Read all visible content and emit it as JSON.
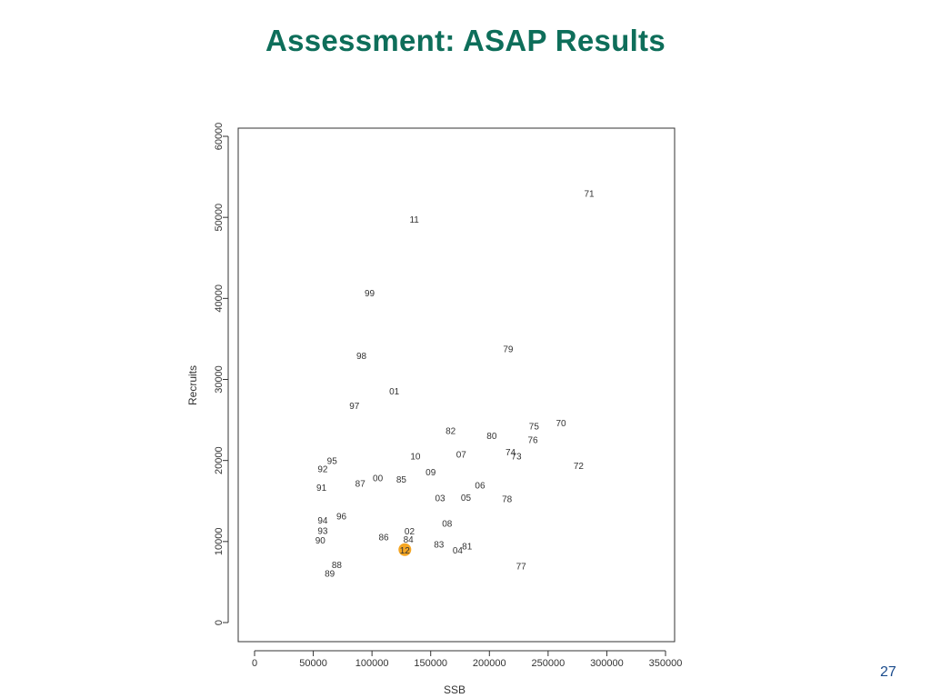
{
  "slide": {
    "title": "Assessment: ASAP Results",
    "page_number": "27"
  },
  "colors": {
    "title": "#0e6e5a",
    "highlight": "#f5a623",
    "page_number": "#1a4b8c"
  },
  "chart_data": {
    "type": "scatter",
    "title": "",
    "xlabel": "SSB",
    "ylabel": "Recruits",
    "xlim": [
      0,
      350000
    ],
    "ylim": [
      0,
      60000
    ],
    "xticks": [
      0,
      50000,
      100000,
      150000,
      200000,
      250000,
      300000,
      350000
    ],
    "yticks": [
      0,
      10000,
      20000,
      30000,
      40000,
      50000,
      60000
    ],
    "grid": false,
    "legend": false,
    "points": [
      {
        "label": "71",
        "x": 285000,
        "y": 53000
      },
      {
        "label": "11",
        "x": 136000,
        "y": 49800
      },
      {
        "label": "99",
        "x": 98000,
        "y": 40700
      },
      {
        "label": "79",
        "x": 216000,
        "y": 33800
      },
      {
        "label": "98",
        "x": 91000,
        "y": 33000
      },
      {
        "label": "01",
        "x": 119000,
        "y": 28600
      },
      {
        "label": "97",
        "x": 85000,
        "y": 26800
      },
      {
        "label": "70",
        "x": 261000,
        "y": 24700
      },
      {
        "label": "75",
        "x": 238000,
        "y": 24300
      },
      {
        "label": "82",
        "x": 167000,
        "y": 23700
      },
      {
        "label": "80",
        "x": 202000,
        "y": 23100
      },
      {
        "label": "76",
        "x": 237000,
        "y": 22600
      },
      {
        "label": "74",
        "x": 218000,
        "y": 21100
      },
      {
        "label": "73",
        "x": 223000,
        "y": 20600
      },
      {
        "label": "07",
        "x": 176000,
        "y": 20800
      },
      {
        "label": "10",
        "x": 137000,
        "y": 20600
      },
      {
        "label": "95",
        "x": 66000,
        "y": 20000
      },
      {
        "label": "72",
        "x": 276000,
        "y": 19400
      },
      {
        "label": "92",
        "x": 58000,
        "y": 19000
      },
      {
        "label": "09",
        "x": 150000,
        "y": 18600
      },
      {
        "label": "00",
        "x": 105000,
        "y": 17900
      },
      {
        "label": "85",
        "x": 125000,
        "y": 17700
      },
      {
        "label": "87",
        "x": 90000,
        "y": 17200
      },
      {
        "label": "06",
        "x": 192000,
        "y": 17000
      },
      {
        "label": "91",
        "x": 57000,
        "y": 16700
      },
      {
        "label": "03",
        "x": 158000,
        "y": 15400
      },
      {
        "label": "05",
        "x": 180000,
        "y": 15500
      },
      {
        "label": "78",
        "x": 215000,
        "y": 15300
      },
      {
        "label": "96",
        "x": 74000,
        "y": 13200
      },
      {
        "label": "94",
        "x": 58000,
        "y": 12700
      },
      {
        "label": "08",
        "x": 164000,
        "y": 12300
      },
      {
        "label": "93",
        "x": 58000,
        "y": 11400
      },
      {
        "label": "02",
        "x": 132000,
        "y": 11300
      },
      {
        "label": "90",
        "x": 56000,
        "y": 10200
      },
      {
        "label": "86",
        "x": 110000,
        "y": 10600
      },
      {
        "label": "84",
        "x": 131000,
        "y": 10300
      },
      {
        "label": "83",
        "x": 157000,
        "y": 9700
      },
      {
        "label": "81",
        "x": 181000,
        "y": 9500
      },
      {
        "label": "04",
        "x": 173000,
        "y": 9000
      },
      {
        "label": "12",
        "x": 128000,
        "y": 9000,
        "highlight": true
      },
      {
        "label": "88",
        "x": 70000,
        "y": 7200
      },
      {
        "label": "77",
        "x": 227000,
        "y": 7000
      },
      {
        "label": "89",
        "x": 64000,
        "y": 6100
      }
    ]
  }
}
